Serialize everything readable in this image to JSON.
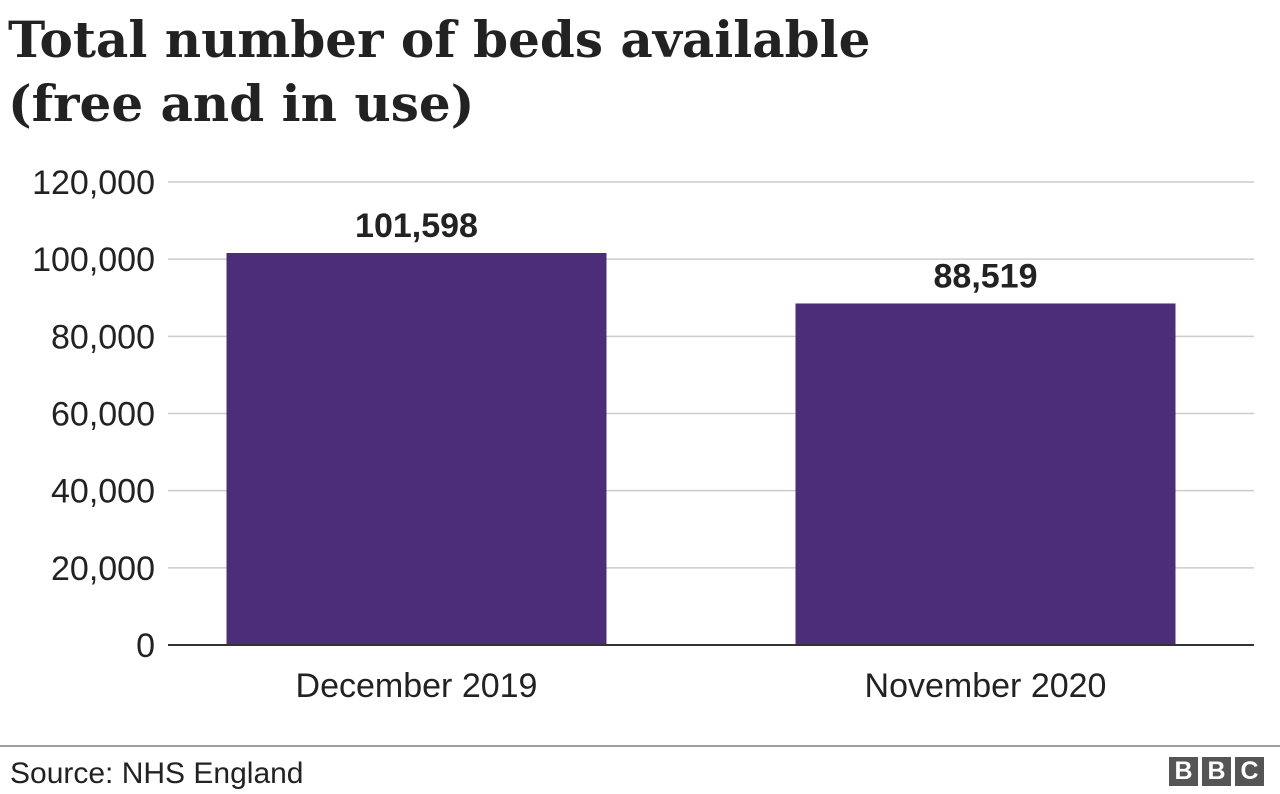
{
  "title_lines": [
    "Total number of beds available",
    "(free and in use)"
  ],
  "source": "Source: NHS England",
  "logo_text": "BBC",
  "colors": {
    "bar": "#4c2d77",
    "grid": "#cccccc",
    "axis": "#333333"
  },
  "chart_data": {
    "type": "bar",
    "title": "Total number of beds available (free and in use)",
    "categories": [
      "December 2019",
      "November 2020"
    ],
    "values": [
      101598,
      88519
    ],
    "data_labels": [
      "101,598",
      "88,519"
    ],
    "yticks": [
      0,
      20000,
      40000,
      60000,
      80000,
      100000,
      120000
    ],
    "ytick_labels": [
      "0",
      "20,000",
      "40,000",
      "60,000",
      "80,000",
      "100,000",
      "120,000"
    ],
    "ylim": [
      0,
      120000
    ],
    "xlabel": "",
    "ylabel": "",
    "grid": true,
    "legend": "none"
  }
}
